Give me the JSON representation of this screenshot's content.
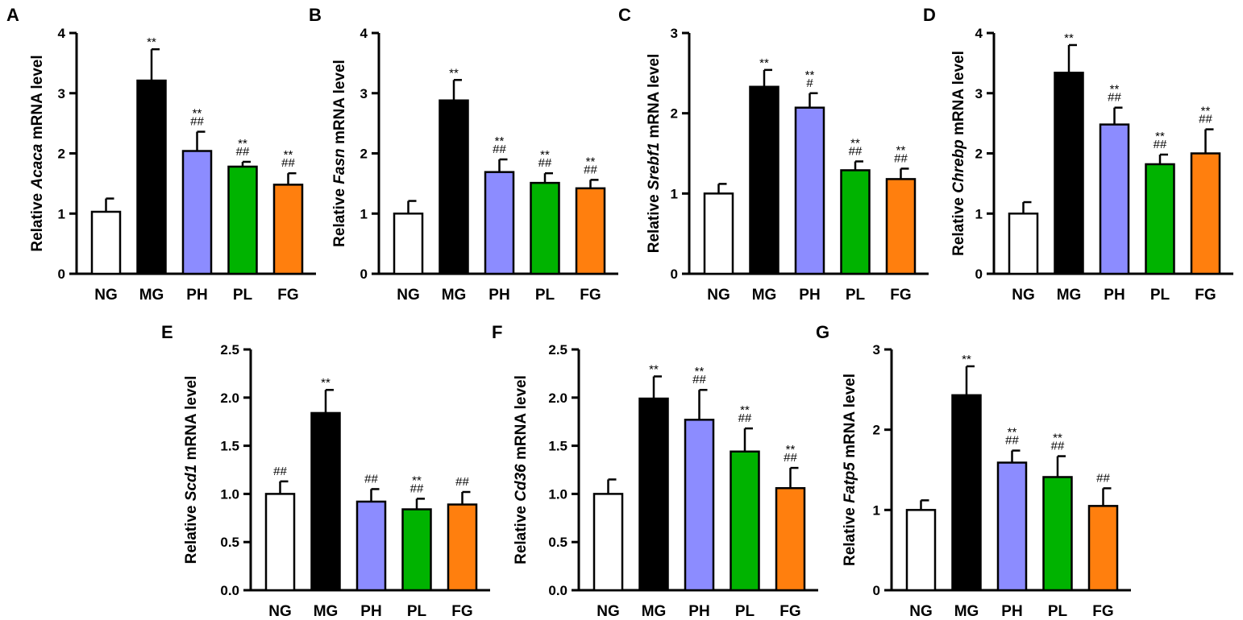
{
  "chart_data": [
    {
      "panel": "A",
      "type": "bar",
      "gene": "Acaca",
      "ylabel_prefix": "Relative ",
      "ylabel_suffix": " mRNA level",
      "ylim": [
        0,
        4
      ],
      "yticks": [
        "0",
        "1",
        "2",
        "3",
        "4"
      ],
      "categories": [
        "NG",
        "MG",
        "PH",
        "PL",
        "FG"
      ],
      "values": [
        1.03,
        3.21,
        2.04,
        1.78,
        1.48
      ],
      "errors": [
        0.22,
        0.52,
        0.32,
        0.08,
        0.19
      ],
      "annotations": [
        [],
        [
          "**"
        ],
        [
          "**",
          "##"
        ],
        [
          "**",
          "##"
        ],
        [
          "**",
          "##"
        ]
      ]
    },
    {
      "panel": "B",
      "type": "bar",
      "gene": "Fasn",
      "ylabel_prefix": "Relative ",
      "ylabel_suffix": " mRNA level",
      "ylim": [
        0,
        4
      ],
      "yticks": [
        "0",
        "1",
        "2",
        "3",
        "4"
      ],
      "categories": [
        "NG",
        "MG",
        "PH",
        "PL",
        "FG"
      ],
      "values": [
        1.0,
        2.88,
        1.69,
        1.51,
        1.42
      ],
      "errors": [
        0.21,
        0.34,
        0.21,
        0.16,
        0.14
      ],
      "annotations": [
        [],
        [
          "**"
        ],
        [
          "**",
          "##"
        ],
        [
          "**",
          "##"
        ],
        [
          "**",
          "##"
        ]
      ]
    },
    {
      "panel": "C",
      "type": "bar",
      "gene": "Srebf1",
      "ylabel_prefix": "Relative ",
      "ylabel_suffix": " mRNA level",
      "ylim": [
        0,
        3
      ],
      "yticks": [
        "0",
        "1",
        "2",
        "3"
      ],
      "categories": [
        "NG",
        "MG",
        "PH",
        "PL",
        "FG"
      ],
      "values": [
        1.0,
        2.33,
        2.07,
        1.29,
        1.18
      ],
      "errors": [
        0.12,
        0.21,
        0.18,
        0.11,
        0.13
      ],
      "annotations": [
        [],
        [
          "**"
        ],
        [
          "**",
          "#"
        ],
        [
          "**",
          "##"
        ],
        [
          "**",
          "##"
        ]
      ]
    },
    {
      "panel": "D",
      "type": "bar",
      "gene": "Chrebp",
      "ylabel_prefix": "Relative ",
      "ylabel_suffix": " mRNA level",
      "ylim": [
        0,
        4
      ],
      "yticks": [
        "0",
        "1",
        "2",
        "3",
        "4"
      ],
      "categories": [
        "NG",
        "MG",
        "PH",
        "PL",
        "FG"
      ],
      "values": [
        1.0,
        3.34,
        2.48,
        1.82,
        2.0
      ],
      "errors": [
        0.19,
        0.46,
        0.28,
        0.16,
        0.4
      ],
      "annotations": [
        [],
        [
          "**"
        ],
        [
          "**",
          "##"
        ],
        [
          "**",
          "##"
        ],
        [
          "**",
          "##"
        ]
      ]
    },
    {
      "panel": "E",
      "type": "bar",
      "gene": "Scd1",
      "ylabel_prefix": "Relative ",
      "ylabel_suffix": " mRNA level",
      "ylim": [
        0,
        2.5
      ],
      "yticks": [
        "0.0",
        "0.5",
        "1.0",
        "1.5",
        "2.0",
        "2.5"
      ],
      "categories": [
        "NG",
        "MG",
        "PH",
        "PL",
        "FG"
      ],
      "values": [
        1.0,
        1.84,
        0.92,
        0.84,
        0.89
      ],
      "errors": [
        0.13,
        0.24,
        0.13,
        0.11,
        0.13
      ],
      "annotations": [
        [
          "##"
        ],
        [
          "**"
        ],
        [
          "##"
        ],
        [
          "**",
          "##"
        ],
        [
          "##"
        ]
      ]
    },
    {
      "panel": "F",
      "type": "bar",
      "gene": "Cd36",
      "ylabel_prefix": "Relative ",
      "ylabel_suffix": " mRNA level",
      "ylim": [
        0,
        2.5
      ],
      "yticks": [
        "0.0",
        "0.5",
        "1.0",
        "1.5",
        "2.0",
        "2.5"
      ],
      "categories": [
        "NG",
        "MG",
        "PH",
        "PL",
        "FG"
      ],
      "values": [
        1.0,
        1.99,
        1.77,
        1.44,
        1.06
      ],
      "errors": [
        0.15,
        0.23,
        0.31,
        0.24,
        0.21
      ],
      "annotations": [
        [],
        [
          "**"
        ],
        [
          "**",
          "##"
        ],
        [
          "**",
          "##"
        ],
        [
          "**",
          "##"
        ]
      ]
    },
    {
      "panel": "G",
      "type": "bar",
      "gene": "Fatp5",
      "ylabel_prefix": "Relative ",
      "ylabel_suffix": " mRNA level",
      "ylim": [
        0,
        3
      ],
      "yticks": [
        "0",
        "1",
        "2",
        "3"
      ],
      "categories": [
        "NG",
        "MG",
        "PH",
        "PL",
        "FG"
      ],
      "values": [
        1.0,
        2.43,
        1.59,
        1.41,
        1.05
      ],
      "errors": [
        0.12,
        0.36,
        0.15,
        0.26,
        0.22
      ],
      "annotations": [
        [],
        [
          "**"
        ],
        [
          "**",
          "##"
        ],
        [
          "**",
          "##"
        ],
        [
          "##"
        ]
      ]
    }
  ],
  "bar_colors": [
    "#ffffff",
    "#000000",
    "#8c8cff",
    "#00b300",
    "#ff7f0e"
  ]
}
